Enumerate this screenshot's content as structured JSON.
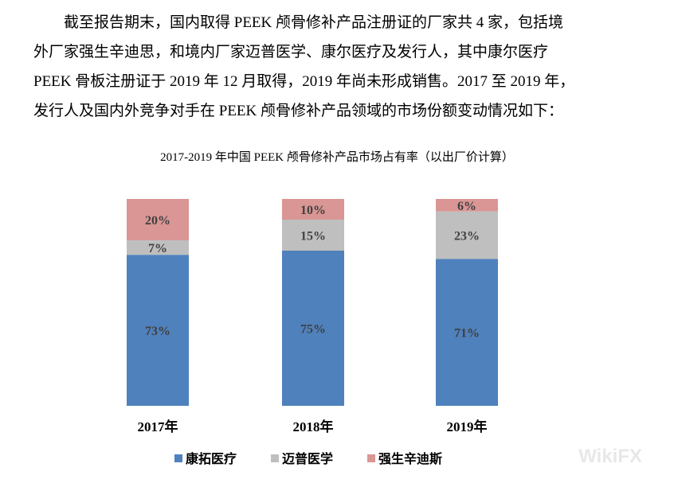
{
  "paragraph": [
    "　　截至报告期末，国内取得 PEEK 颅骨修补产品注册证的厂家共 4 家，包括境",
    "外厂家强生辛迪思，和境内厂家迈普医学、康尔医疗及发行人，其中康尔医疗",
    "PEEK 骨板注册证于 2019 年 12 月取得，2019 年尚未形成销售。2017 至 2019 年，",
    "发行人及国内外竞争对手在 PEEK 颅骨修补产品领域的市场份额变动情况如下："
  ],
  "chart_data": {
    "type": "bar",
    "stacked": true,
    "title": "2017-2019 年中国 PEEK 颅骨修补产品市场占有率（以出厂价计算）",
    "categories": [
      "2017年",
      "2018年",
      "2019年"
    ],
    "series": [
      {
        "name": "康拓医疗",
        "values": [
          73,
          75,
          71
        ],
        "labels": [
          "73%",
          "75%",
          "71%"
        ],
        "color": "#4f81bd"
      },
      {
        "name": "迈普医学",
        "values": [
          7,
          15,
          23
        ],
        "labels": [
          "7%",
          "15%",
          "23%"
        ],
        "color": "#bfbfbf"
      },
      {
        "name": "强生辛迪斯",
        "values": [
          20,
          10,
          6
        ],
        "labels": [
          "20%",
          "10%",
          "6%"
        ],
        "color": "#d99694"
      }
    ],
    "ylim": [
      0,
      100
    ],
    "grid": false,
    "legend": "bottom"
  },
  "watermark": "WikiFX"
}
